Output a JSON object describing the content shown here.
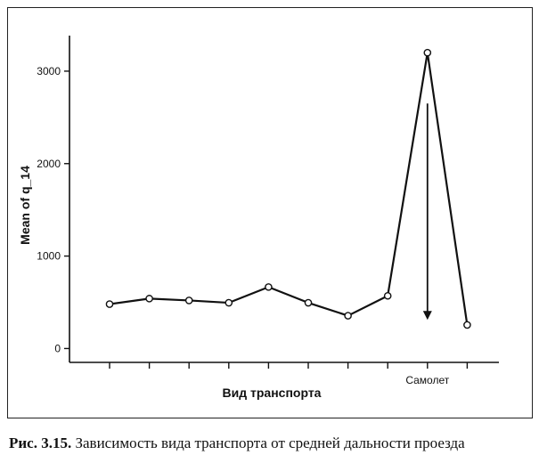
{
  "caption": {
    "number": "Рис. 3.15.",
    "text": "Зависимость вида транспорта от средней дальности проезда"
  },
  "chart_data": {
    "type": "line",
    "xlabel": "Вид транспорта",
    "ylabel": "Mean of q_14",
    "categories": [
      "",
      "",
      "",
      "",
      "",
      "",
      "",
      "",
      "Самолет",
      ""
    ],
    "values": [
      480,
      540,
      520,
      495,
      665,
      495,
      355,
      570,
      3200,
      255
    ],
    "ylim": [
      -150,
      3500
    ],
    "yticks": [
      0,
      1000,
      2000,
      3000
    ],
    "annotation": {
      "type": "arrow",
      "category_index": 8,
      "from_value": 2650,
      "to_value": 310
    },
    "line_color": "#111111",
    "marker": "open-circle",
    "grid": false
  }
}
